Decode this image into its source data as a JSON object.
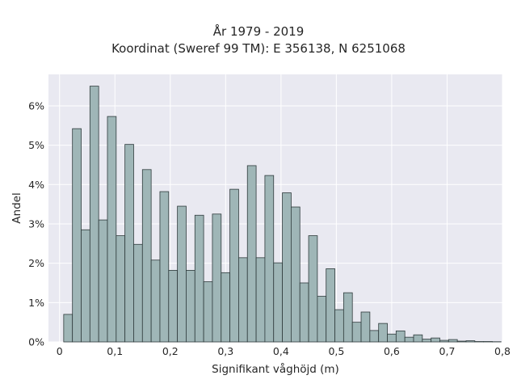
{
  "chart_data": {
    "type": "bar",
    "title": "År 1979 - 2019",
    "subtitle": "Koordinat (Sweref 99 TM): E 356138, N 6251068",
    "xlabel": "Signifikant våghöjd (m)",
    "ylabel": "Andel",
    "xlim": [
      -0.02,
      0.8
    ],
    "ylim": [
      0,
      6.8
    ],
    "x_ticks": [
      0,
      0.1,
      0.2,
      0.3,
      0.4,
      0.5,
      0.6,
      0.7,
      0.8
    ],
    "x_tick_labels": [
      "0",
      "0,1",
      "0,2",
      "0,3",
      "0,4",
      "0,5",
      "0,6",
      "0,7",
      "0,8"
    ],
    "y_ticks": [
      0,
      1,
      2,
      3,
      4,
      5,
      6
    ],
    "y_tick_labels": [
      "0%",
      "1%",
      "2%",
      "3%",
      "4%",
      "5%",
      "6%"
    ],
    "bin_width": 0.0158,
    "bin_start": 0.0075,
    "values": [
      0.7,
      5.42,
      2.85,
      6.5,
      3.1,
      5.73,
      2.7,
      5.02,
      2.48,
      4.38,
      2.08,
      3.82,
      1.82,
      3.45,
      1.82,
      3.22,
      1.53,
      3.25,
      1.76,
      3.88,
      2.14,
      4.48,
      2.14,
      4.23,
      2.01,
      3.79,
      3.43,
      1.5,
      2.7,
      1.16,
      1.86,
      0.82,
      1.25,
      0.5,
      0.76,
      0.29,
      0.47,
      0.2,
      0.28,
      0.12,
      0.18,
      0.07,
      0.1,
      0.04,
      0.06,
      0.02,
      0.03,
      0.01,
      0.01,
      0.005
    ],
    "grid": true,
    "bar_color": "#9fb6b7",
    "edge_color": "#2f3b3c",
    "background": "#e9e9f1"
  }
}
